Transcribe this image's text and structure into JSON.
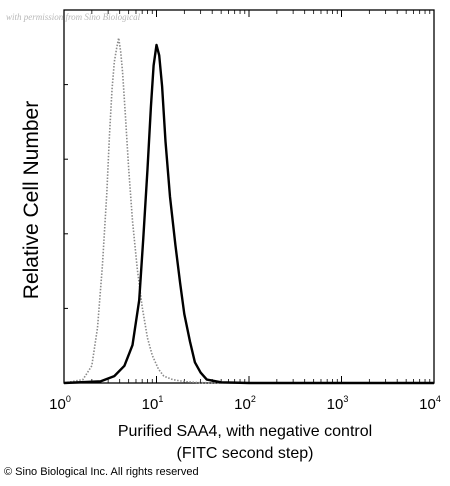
{
  "watermark": "with permission from Sino Biological",
  "copyright": "© Sino Biological Inc. All rights reserved",
  "chart_data": {
    "type": "line",
    "title": "",
    "ylabel": "Relative Cell Number",
    "xlabel_line1": "Purified SAA4, with negative control",
    "xlabel_line2": "(FITC second step)",
    "x_scale": "log",
    "xlim": [
      1,
      10000
    ],
    "ylim": [
      0,
      1
    ],
    "grid": false,
    "legend": "none",
    "x_ticks": [
      {
        "base": "10",
        "exp": "0",
        "value": 1
      },
      {
        "base": "10",
        "exp": "1",
        "value": 10
      },
      {
        "base": "10",
        "exp": "2",
        "value": 100
      },
      {
        "base": "10",
        "exp": "3",
        "value": 1000
      },
      {
        "base": "10",
        "exp": "4",
        "value": 10000
      }
    ],
    "series": [
      {
        "style": "dotted",
        "color": "#8a8a8a",
        "x": [
          1,
          1.6,
          2.0,
          2.3,
          2.6,
          2.9,
          3.1,
          3.3,
          3.5,
          3.7,
          3.9,
          4.1,
          4.3,
          4.6,
          5.0,
          5.5,
          6.2,
          7.0,
          8.0,
          9.0,
          10.5,
          12,
          15,
          20,
          30,
          100,
          10000
        ],
        "y": [
          0,
          0.01,
          0.05,
          0.16,
          0.34,
          0.55,
          0.72,
          0.85,
          0.93,
          0.97,
          1.0,
          0.96,
          0.9,
          0.78,
          0.62,
          0.47,
          0.33,
          0.22,
          0.13,
          0.08,
          0.04,
          0.02,
          0.01,
          0.004,
          0.001,
          0,
          0
        ]
      },
      {
        "style": "solid",
        "color": "#000000",
        "x": [
          1,
          2.5,
          3.5,
          4.5,
          5.5,
          6.5,
          7.2,
          8.0,
          8.7,
          9.3,
          10.0,
          10.7,
          11.5,
          12.5,
          14.0,
          16.0,
          18.0,
          20.0,
          23.0,
          26.0,
          30.0,
          35.0,
          50,
          100,
          10000
        ],
        "y": [
          0,
          0.005,
          0.02,
          0.05,
          0.11,
          0.24,
          0.42,
          0.62,
          0.8,
          0.92,
          0.98,
          0.95,
          0.86,
          0.7,
          0.54,
          0.4,
          0.29,
          0.2,
          0.12,
          0.06,
          0.03,
          0.01,
          0.002,
          0,
          0
        ]
      }
    ]
  }
}
